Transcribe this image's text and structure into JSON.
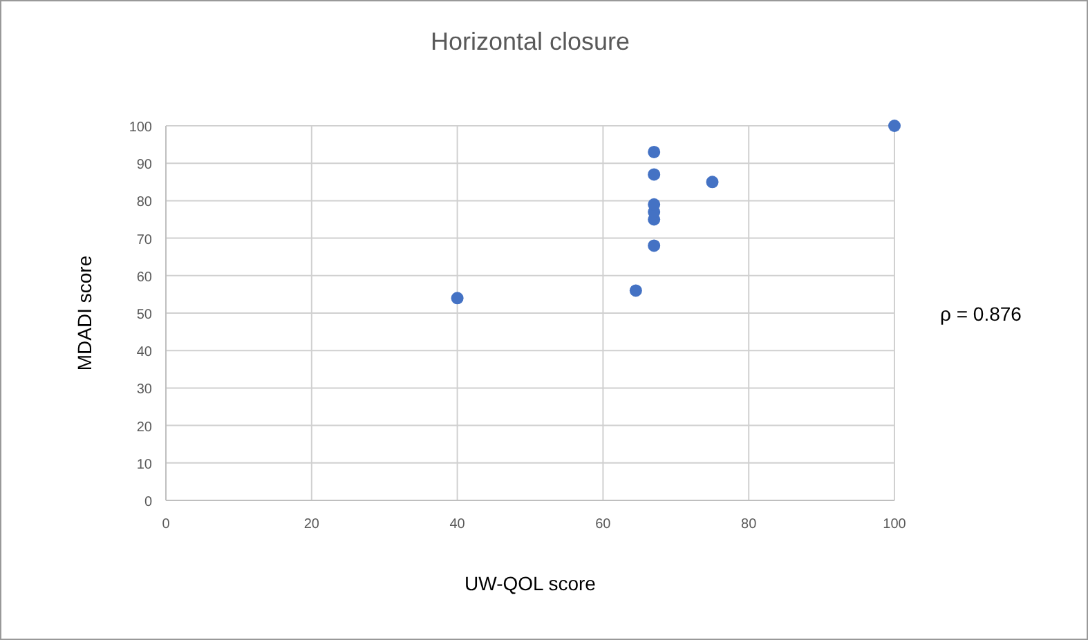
{
  "chart_data": {
    "type": "scatter",
    "title": "Horizontal closure",
    "xlabel": "UW-QOL score",
    "ylabel": "MDADI score",
    "x": [
      40,
      64.5,
      67,
      67,
      67,
      67,
      67,
      67,
      75,
      100
    ],
    "series": [
      {
        "color": "#4472c4",
        "values": [
          54,
          56,
          68,
          75,
          77,
          79,
          87,
          93,
          85,
          100
        ]
      }
    ],
    "xlim": [
      0,
      100
    ],
    "xticks": [
      0,
      20,
      40,
      60,
      80,
      100
    ],
    "ylim": [
      0,
      100
    ],
    "yticks": [
      0,
      10,
      20,
      30,
      40,
      50,
      60,
      70,
      80,
      90,
      100
    ],
    "grid": true,
    "marker": "circle",
    "annotations": [
      "ρ = 0.876"
    ]
  }
}
